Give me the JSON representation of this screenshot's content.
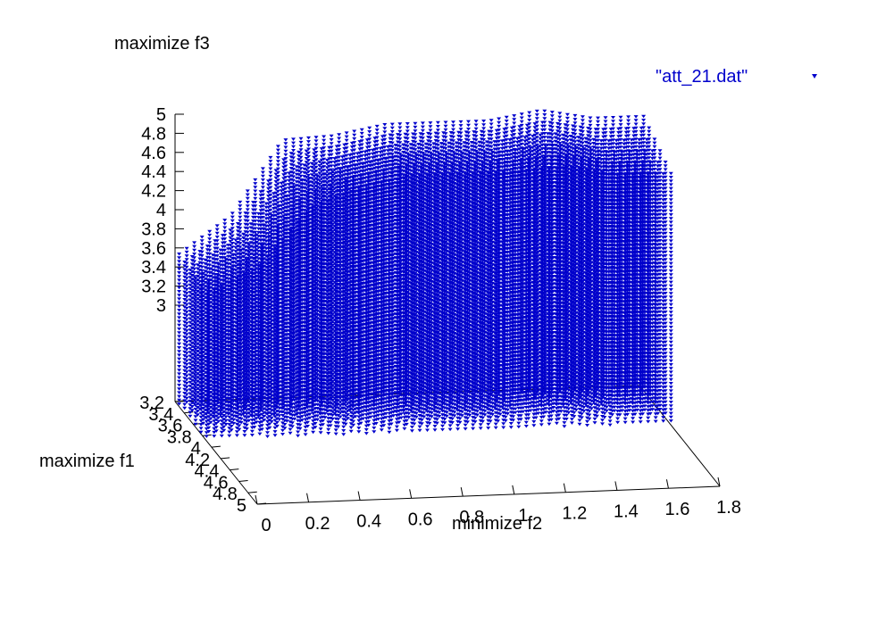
{
  "chart_data": {
    "type": "scatter",
    "title": "",
    "zlabel": "maximize f3",
    "xlabel": "minimize f2",
    "ylabel": "maximize f1",
    "legend": {
      "label": "\"att_21.dat\"",
      "position": "top-right",
      "marker": "triangle-down"
    },
    "series_color": "#0000cc",
    "grid": false,
    "xlim": [
      0,
      1.8
    ],
    "ylim": [
      3.2,
      5
    ],
    "zlim": [
      3,
      5
    ],
    "x_ticks": [
      "0",
      "0.2",
      "0.4",
      "0.6",
      "0.8",
      "1",
      "1.2",
      "1.4",
      "1.6",
      "1.8"
    ],
    "y_ticks": [
      "3.2",
      "3.4",
      "3.6",
      "3.8",
      "4",
      "4.2",
      "4.4",
      "4.6",
      "4.8",
      "5"
    ],
    "z_ticks": [
      "3",
      "3.2",
      "3.4",
      "3.6",
      "3.8",
      "4",
      "4.2",
      "4.4",
      "4.6",
      "4.8",
      "5"
    ],
    "series": [
      {
        "name": "\"att_21.dat\"",
        "surface": {
          "f1": [
            3.2,
            4.2,
            5.0
          ],
          "f2": [
            0.0,
            0.2,
            0.4,
            0.6,
            0.8,
            1.0,
            1.2,
            1.4,
            1.6,
            1.8
          ],
          "f3": [
            [
              3.6,
              4.0,
              4.8,
              4.8,
              4.9,
              4.9,
              4.9,
              5.0,
              4.9,
              4.9
            ],
            [
              3.5,
              3.7,
              4.2,
              4.5,
              4.6,
              4.6,
              4.6,
              4.6,
              4.5,
              4.5
            ],
            [
              3.4,
              3.5,
              3.8,
              4.2,
              4.2,
              4.1,
              4.1,
              4.1,
              4.1,
              4.1
            ]
          ]
        }
      }
    ]
  }
}
